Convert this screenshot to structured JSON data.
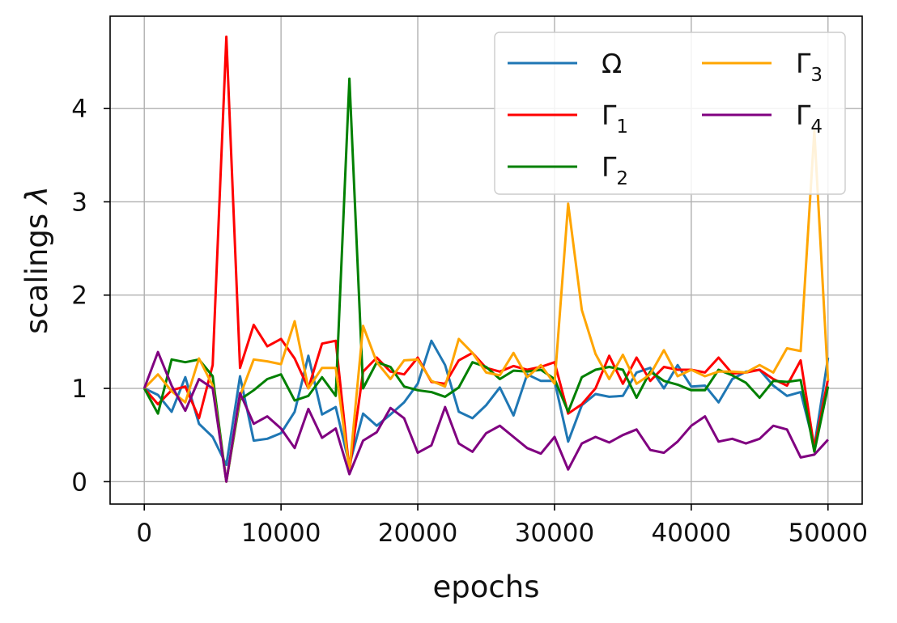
{
  "chart_data": {
    "type": "line",
    "xlabel": "epochs",
    "ylabel": "scalings",
    "ylabel_symbol": "λ",
    "xlim": [
      -2500,
      52500
    ],
    "ylim": [
      -0.24,
      4.99
    ],
    "xticks": [
      0,
      10000,
      20000,
      30000,
      40000,
      50000
    ],
    "yticks": [
      0,
      1,
      2,
      3,
      4
    ],
    "grid": true,
    "legend_position": "top-right",
    "legend_columns": 2,
    "x": [
      0,
      1000,
      2000,
      3000,
      4000,
      5000,
      6000,
      7000,
      8000,
      9000,
      10000,
      11000,
      12000,
      13000,
      14000,
      15000,
      16000,
      17000,
      18000,
      19000,
      20000,
      21000,
      22000,
      23000,
      24000,
      25000,
      26000,
      27000,
      28000,
      29000,
      30000,
      31000,
      32000,
      33000,
      34000,
      35000,
      36000,
      37000,
      38000,
      39000,
      40000,
      41000,
      42000,
      43000,
      44000,
      45000,
      46000,
      47000,
      48000,
      49000,
      50000
    ],
    "series": [
      {
        "name": "Ω",
        "base": "Ω",
        "sub": "",
        "color": "#1f77b4",
        "values": [
          1.0,
          0.93,
          0.75,
          1.12,
          0.62,
          0.48,
          0.18,
          1.13,
          0.44,
          0.46,
          0.52,
          0.75,
          1.35,
          0.72,
          0.8,
          0.18,
          0.73,
          0.6,
          0.72,
          0.85,
          1.05,
          1.51,
          1.25,
          0.75,
          0.68,
          0.82,
          1.01,
          0.71,
          1.15,
          1.08,
          1.08,
          0.43,
          0.82,
          0.94,
          0.91,
          0.92,
          1.17,
          1.22,
          1.0,
          1.25,
          1.02,
          1.03,
          0.85,
          1.1,
          1.18,
          1.2,
          1.03,
          0.92,
          0.96,
          0.38,
          1.33
        ]
      },
      {
        "name": "Γ1",
        "base": "Γ",
        "sub": "1",
        "color": "#ff0000",
        "values": [
          1.0,
          0.83,
          0.98,
          1.02,
          0.68,
          1.25,
          4.77,
          1.22,
          1.68,
          1.45,
          1.53,
          1.32,
          1.0,
          1.48,
          1.51,
          0.12,
          1.18,
          1.33,
          1.18,
          1.15,
          1.33,
          1.07,
          1.05,
          1.3,
          1.38,
          1.22,
          1.18,
          1.24,
          1.2,
          1.23,
          1.28,
          0.73,
          0.83,
          1.0,
          1.35,
          1.05,
          1.33,
          1.08,
          1.23,
          1.2,
          1.2,
          1.17,
          1.33,
          1.16,
          1.17,
          1.2,
          1.1,
          1.03,
          1.3,
          0.36,
          1.1
        ]
      },
      {
        "name": "Γ2",
        "base": "Γ",
        "sub": "2",
        "color": "#008000",
        "values": [
          1.0,
          0.73,
          1.31,
          1.28,
          1.31,
          1.13,
          0.0,
          0.88,
          0.98,
          1.1,
          1.15,
          0.87,
          0.92,
          1.12,
          0.92,
          4.32,
          1.0,
          1.28,
          1.23,
          1.02,
          0.98,
          0.96,
          0.91,
          1.01,
          1.28,
          1.23,
          1.1,
          1.19,
          1.18,
          1.2,
          1.1,
          0.75,
          1.12,
          1.2,
          1.23,
          1.2,
          0.9,
          1.18,
          1.08,
          1.04,
          0.98,
          0.98,
          1.2,
          1.14,
          1.06,
          0.9,
          1.08,
          1.07,
          1.09,
          0.32,
          1.02
        ]
      },
      {
        "name": "Γ3",
        "base": "Γ",
        "sub": "3",
        "color": "#ffa500",
        "values": [
          1.0,
          1.15,
          0.97,
          0.85,
          1.32,
          1.03,
          0.0,
          0.92,
          1.31,
          1.29,
          1.26,
          1.72,
          1.0,
          1.22,
          1.22,
          0.12,
          1.67,
          1.28,
          1.1,
          1.3,
          1.31,
          1.08,
          1.02,
          1.53,
          1.38,
          1.17,
          1.14,
          1.38,
          1.12,
          1.25,
          1.05,
          2.98,
          1.84,
          1.37,
          1.1,
          1.36,
          1.05,
          1.15,
          1.41,
          1.13,
          1.2,
          1.13,
          1.18,
          1.18,
          1.17,
          1.25,
          1.17,
          1.43,
          1.4,
          3.76,
          1.08
        ]
      },
      {
        "name": "Γ4",
        "base": "Γ",
        "sub": "4",
        "color": "#800080",
        "values": [
          1.0,
          1.39,
          1.03,
          0.76,
          1.1,
          1.0,
          0.0,
          0.95,
          0.62,
          0.7,
          0.57,
          0.36,
          0.78,
          0.47,
          0.57,
          0.08,
          0.44,
          0.53,
          0.79,
          0.68,
          0.31,
          0.39,
          0.8,
          0.41,
          0.32,
          0.52,
          0.6,
          0.48,
          0.36,
          0.3,
          0.48,
          0.13,
          0.41,
          0.48,
          0.42,
          0.5,
          0.56,
          0.34,
          0.31,
          0.43,
          0.6,
          0.7,
          0.43,
          0.46,
          0.41,
          0.46,
          0.6,
          0.56,
          0.26,
          0.29,
          0.45
        ]
      }
    ]
  }
}
